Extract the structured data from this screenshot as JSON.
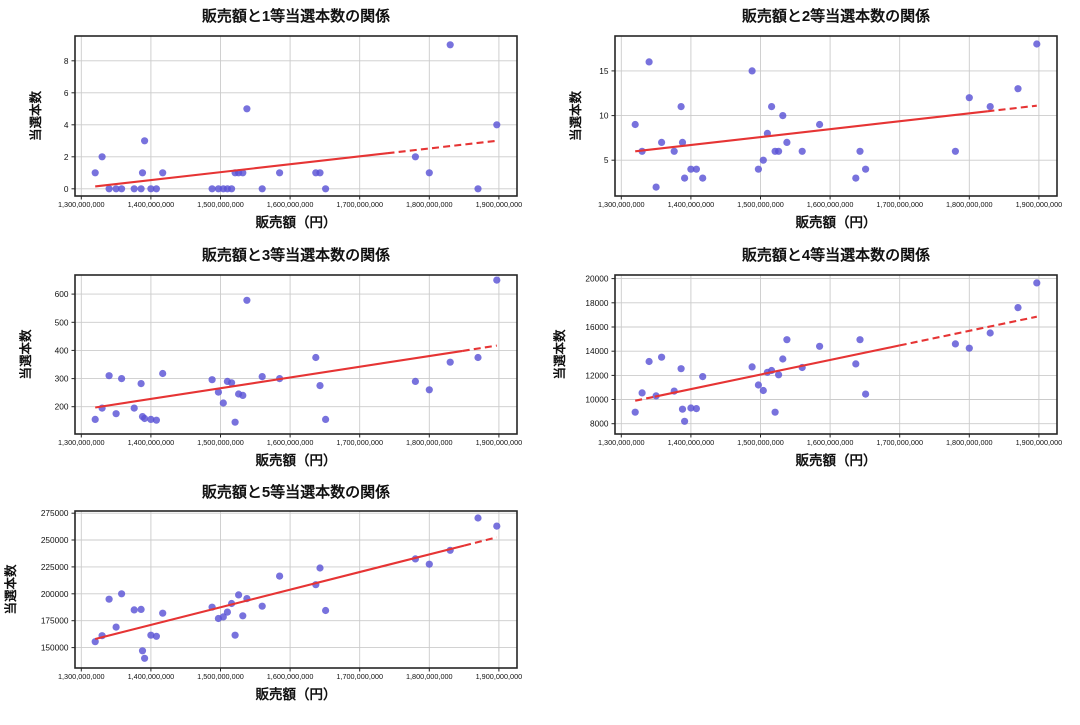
{
  "page": {
    "background": "#ffffff",
    "description": "販売額と当選本数の関係 散布図 5枚"
  },
  "style": {
    "point_color": "#5a53d6",
    "point_opacity": 0.82,
    "trend_color": "#e63434",
    "grid_color": "#cbcbcb",
    "axis_color": "#262626",
    "text_color": "#111111"
  },
  "chart_data": [
    {
      "type": "scatter",
      "title": "販売額と1等当選本数の関係",
      "xlabel": "販売額（円）",
      "ylabel": "当選本数",
      "legend": null,
      "grid": true,
      "xlim": [
        1291000000,
        1926000000
      ],
      "ylim": [
        -0.45,
        9.55
      ],
      "x_ticks": [
        1300000000,
        1400000000,
        1500000000,
        1600000000,
        1700000000,
        1800000000,
        1900000000
      ],
      "x_tick_labels": [
        "1,300,000,000",
        "1,400,000,000",
        "1,500,000,000",
        "1,600,000,000",
        "1,700,000,000",
        "1,800,000,000",
        "1,900,000,000"
      ],
      "y_ticks": [
        0,
        2,
        4,
        6,
        8
      ],
      "x": [
        1320000000,
        1330000000,
        1340000000,
        1350000000,
        1358000000,
        1376000000,
        1386000000,
        1388000000,
        1391000000,
        1400000000,
        1408000000,
        1417000000,
        1488000000,
        1497000000,
        1504000000,
        1510000000,
        1516000000,
        1521000000,
        1526000000,
        1532000000,
        1538000000,
        1560000000,
        1585000000,
        1637000000,
        1643000000,
        1651000000,
        1780000000,
        1800000000,
        1830000000,
        1870000000,
        1897000000
      ],
      "y": [
        1,
        2,
        0,
        0,
        0,
        0,
        0,
        1,
        3,
        0,
        0,
        1,
        0,
        0,
        0,
        0,
        0,
        1,
        1,
        1,
        5,
        0,
        1,
        1,
        1,
        0,
        2,
        1,
        9,
        0,
        4
      ],
      "trend": {
        "x0": 1320000000,
        "y0": 0.15,
        "x1": 1897000000,
        "y1": 3.0,
        "dash_until": 1320000000,
        "dash_from": 1740000000
      },
      "layout": {
        "plot_top": 36,
        "plot_bottom": 196,
        "title_y": 21,
        "ylabel_x": 40
      }
    },
    {
      "type": "scatter",
      "title": "販売額と2等当選本数の関係",
      "xlabel": "販売額（円）",
      "ylabel": "当選本数",
      "legend": null,
      "grid": true,
      "xlim": [
        1291000000,
        1926000000
      ],
      "ylim": [
        1.0,
        18.9
      ],
      "x_ticks": [
        1300000000,
        1400000000,
        1500000000,
        1600000000,
        1700000000,
        1800000000,
        1900000000
      ],
      "x_tick_labels": [
        "1,300,000,000",
        "1,400,000,000",
        "1,500,000,000",
        "1,600,000,000",
        "1,700,000,000",
        "1,800,000,000",
        "1,900,000,000"
      ],
      "y_ticks": [
        5,
        10,
        15
      ],
      "x": [
        1320000000,
        1330000000,
        1340000000,
        1350000000,
        1358000000,
        1376000000,
        1386000000,
        1388000000,
        1391000000,
        1400000000,
        1408000000,
        1417000000,
        1488000000,
        1497000000,
        1504000000,
        1510000000,
        1516000000,
        1521000000,
        1526000000,
        1532000000,
        1538000000,
        1560000000,
        1585000000,
        1637000000,
        1643000000,
        1651000000,
        1780000000,
        1800000000,
        1830000000,
        1870000000,
        1897000000
      ],
      "y": [
        9,
        6,
        16,
        2,
        7,
        6,
        11,
        7,
        3,
        4,
        4,
        3,
        15,
        4,
        5,
        8,
        11,
        6,
        6,
        10,
        7,
        6,
        9,
        3,
        6,
        4,
        6,
        12,
        11,
        13,
        18
      ],
      "trend": {
        "x0": 1320000000,
        "y0": 6.0,
        "x1": 1897000000,
        "y1": 11.1,
        "dash_until": 1320000000,
        "dash_from": 1826000000
      },
      "layout": {
        "plot_top": 36,
        "plot_bottom": 196,
        "title_y": 21,
        "ylabel_x": 40
      }
    },
    {
      "type": "scatter",
      "title": "販売額と3等当選本数の関係",
      "xlabel": "販売額（円）",
      "ylabel": "当選本数",
      "legend": null,
      "grid": true,
      "xlim": [
        1291000000,
        1926000000
      ],
      "ylim": [
        103,
        668
      ],
      "x_ticks": [
        1300000000,
        1400000000,
        1500000000,
        1600000000,
        1700000000,
        1800000000,
        1900000000
      ],
      "x_tick_labels": [
        "1,300,000,000",
        "1,400,000,000",
        "1,500,000,000",
        "1,600,000,000",
        "1,700,000,000",
        "1,800,000,000",
        "1,900,000,000"
      ],
      "y_ticks": [
        200,
        300,
        400,
        500,
        600
      ],
      "x": [
        1320000000,
        1330000000,
        1340000000,
        1350000000,
        1358000000,
        1376000000,
        1386000000,
        1388000000,
        1391000000,
        1400000000,
        1408000000,
        1417000000,
        1488000000,
        1497000000,
        1504000000,
        1510000000,
        1516000000,
        1521000000,
        1526000000,
        1532000000,
        1538000000,
        1560000000,
        1585000000,
        1637000000,
        1643000000,
        1651000000,
        1780000000,
        1800000000,
        1830000000,
        1870000000,
        1897000000
      ],
      "y": [
        155,
        195,
        310,
        175,
        300,
        195,
        282,
        165,
        158,
        155,
        152,
        318,
        296,
        252,
        213,
        290,
        285,
        145,
        245,
        240,
        578,
        307,
        300,
        375,
        275,
        155,
        290,
        260,
        358,
        375,
        650
      ],
      "trend": {
        "x0": 1320000000,
        "y0": 197,
        "x1": 1897000000,
        "y1": 417,
        "dash_until": 1320000000,
        "dash_from": 1848000000
      },
      "layout": {
        "plot_top": 35,
        "plot_bottom": 194,
        "title_y": 20,
        "ylabel_x": 30
      }
    },
    {
      "type": "scatter",
      "title": "販売額と4等当選本数の関係",
      "xlabel": "販売額（円）",
      "ylabel": "当選本数",
      "legend": null,
      "grid": true,
      "xlim": [
        1291000000,
        1926000000
      ],
      "ylim": [
        7150,
        20300
      ],
      "x_ticks": [
        1300000000,
        1400000000,
        1500000000,
        1600000000,
        1700000000,
        1800000000,
        1900000000
      ],
      "x_tick_labels": [
        "1,300,000,000",
        "1,400,000,000",
        "1,500,000,000",
        "1,600,000,000",
        "1,700,000,000",
        "1,800,000,000",
        "1,900,000,000"
      ],
      "y_ticks": [
        8000,
        10000,
        12000,
        14000,
        16000,
        18000,
        20000
      ],
      "x": [
        1320000000,
        1330000000,
        1340000000,
        1350000000,
        1358000000,
        1376000000,
        1386000000,
        1388000000,
        1391000000,
        1400000000,
        1408000000,
        1417000000,
        1488000000,
        1497000000,
        1504000000,
        1510000000,
        1516000000,
        1521000000,
        1526000000,
        1532000000,
        1538000000,
        1560000000,
        1585000000,
        1637000000,
        1643000000,
        1651000000,
        1780000000,
        1800000000,
        1830000000,
        1870000000,
        1897000000
      ],
      "y": [
        8950,
        10550,
        13150,
        10300,
        13500,
        10700,
        12550,
        9200,
        8200,
        9300,
        9250,
        11900,
        12700,
        11200,
        10750,
        12250,
        12400,
        8950,
        12050,
        13350,
        14950,
        12650,
        14400,
        12950,
        14950,
        10450,
        14600,
        14250,
        15500,
        17600,
        19650
      ],
      "trend": {
        "x0": 1320000000,
        "y0": 9900,
        "x1": 1897000000,
        "y1": 16850,
        "dash_until": 1348000000,
        "dash_from": 1700000000
      },
      "layout": {
        "plot_top": 35,
        "plot_bottom": 194,
        "title_y": 20,
        "ylabel_x": 24
      }
    },
    {
      "type": "scatter",
      "title": "販売額と5等当選本数の関係",
      "xlabel": "販売額（円）",
      "ylabel": "当選本数",
      "legend": null,
      "grid": true,
      "xlim": [
        1291000000,
        1926000000
      ],
      "ylim": [
        131000,
        277000
      ],
      "x_ticks": [
        1300000000,
        1400000000,
        1500000000,
        1600000000,
        1700000000,
        1800000000,
        1900000000
      ],
      "x_tick_labels": [
        "1,300,000,000",
        "1,400,000,000",
        "1,500,000,000",
        "1,600,000,000",
        "1,700,000,000",
        "1,800,000,000",
        "1,900,000,000"
      ],
      "y_ticks": [
        150000,
        175000,
        200000,
        225000,
        250000,
        275000
      ],
      "x": [
        1320000000,
        1330000000,
        1340000000,
        1350000000,
        1358000000,
        1376000000,
        1386000000,
        1388000000,
        1391000000,
        1400000000,
        1408000000,
        1417000000,
        1488000000,
        1497000000,
        1504000000,
        1510000000,
        1516000000,
        1521000000,
        1526000000,
        1532000000,
        1538000000,
        1560000000,
        1585000000,
        1637000000,
        1643000000,
        1651000000,
        1780000000,
        1800000000,
        1830000000,
        1870000000,
        1897000000
      ],
      "y": [
        155500,
        161000,
        195000,
        169000,
        200000,
        185000,
        185500,
        147000,
        140000,
        161500,
        160500,
        182000,
        187500,
        177000,
        178500,
        183000,
        191000,
        161500,
        199000,
        179500,
        195500,
        188500,
        216500,
        208500,
        224000,
        184500,
        232500,
        227500,
        240500,
        270500,
        263000
      ],
      "trend": {
        "x0": 1320000000,
        "y0": 158000,
        "x1": 1897000000,
        "y1": 252500,
        "dash_until": 1320000000,
        "dash_from": 1850000000
      },
      "layout": {
        "plot_top": 31,
        "plot_bottom": 188,
        "title_y": 17,
        "ylabel_x": 15
      }
    }
  ]
}
